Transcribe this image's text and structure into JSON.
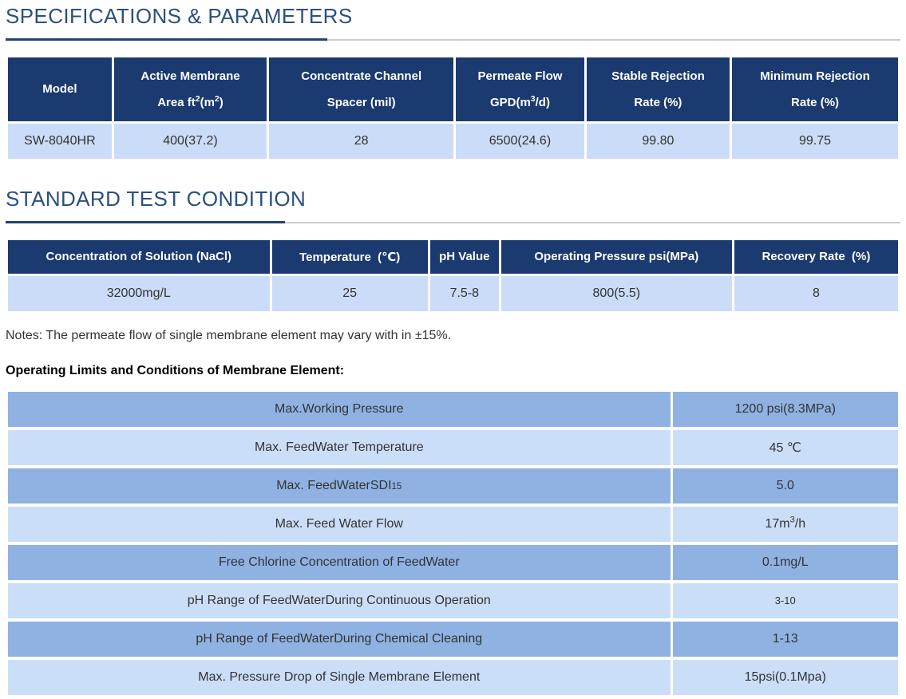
{
  "colors": {
    "table_header_bg": "#1b3a70",
    "table_row_bg": "#cadcf7",
    "band_medium": "#8fb2e3",
    "band_light": "#cbdef8",
    "title_text": "#2a5080",
    "rule_blue": "#24436f",
    "rule_gray": "#cccccc",
    "header_text": "#ffffff",
    "body_text": "#333333"
  },
  "specifications": {
    "title": "SPECIFICATIONS & PARAMETERS",
    "headers": [
      "Model",
      "Active Membrane<br>Area ft<sup>2</sup>(m<sup>2</sup>)",
      "Concentrate Channel<br>Spacer (mil)",
      "Permeate Flow<br>GPD(m<sup>3</sup>/d)",
      "Stable Rejection<br>Rate (%)",
      "Minimum Rejection<br>Rate (%)"
    ],
    "row": [
      "SW-8040HR",
      "400(37.2)",
      "28",
      "6500(24.6)",
      "99.80",
      "99.75"
    ]
  },
  "test_condition": {
    "title": "STANDARD TEST CONDITION",
    "headers": [
      "Concentration of Solution (NaCl)",
      "Temperature  (℃)",
      "pH Value",
      "Operating Pressure psi(MPa)",
      "Recovery Rate  (%)"
    ],
    "row": [
      "32000mg/L",
      "25",
      "7.5-8",
      "800(5.5)",
      "8"
    ]
  },
  "notes": "Notes: The permeate flow of single membrane element may vary with in ±15%.",
  "limits": {
    "heading": "Operating Limits and Conditions of Membrane Element:",
    "rows": [
      {
        "label": "Max.Working Pressure",
        "value": "1200 psi(8.3MPa)"
      },
      {
        "label": "Max. FeedWater Temperature",
        "value": "45 ℃"
      },
      {
        "label": "Max. FeedWaterSDI<small>15</small>",
        "value": "5.0"
      },
      {
        "label": "Max. Feed Water Flow",
        "value": "17m<sup>3</sup>/h"
      },
      {
        "label": "Free Chlorine Concentration of FeedWater",
        "value": "0.1mg/L"
      },
      {
        "label": "pH Range of FeedWaterDuring Continuous Operation",
        "value": "3-10"
      },
      {
        "label": "pH Range of FeedWaterDuring Chemical Cleaning",
        "value": "1-13"
      },
      {
        "label": "Max. Pressure Drop of Single Membrane Element",
        "value": "15psi(0.1Mpa)"
      }
    ]
  }
}
